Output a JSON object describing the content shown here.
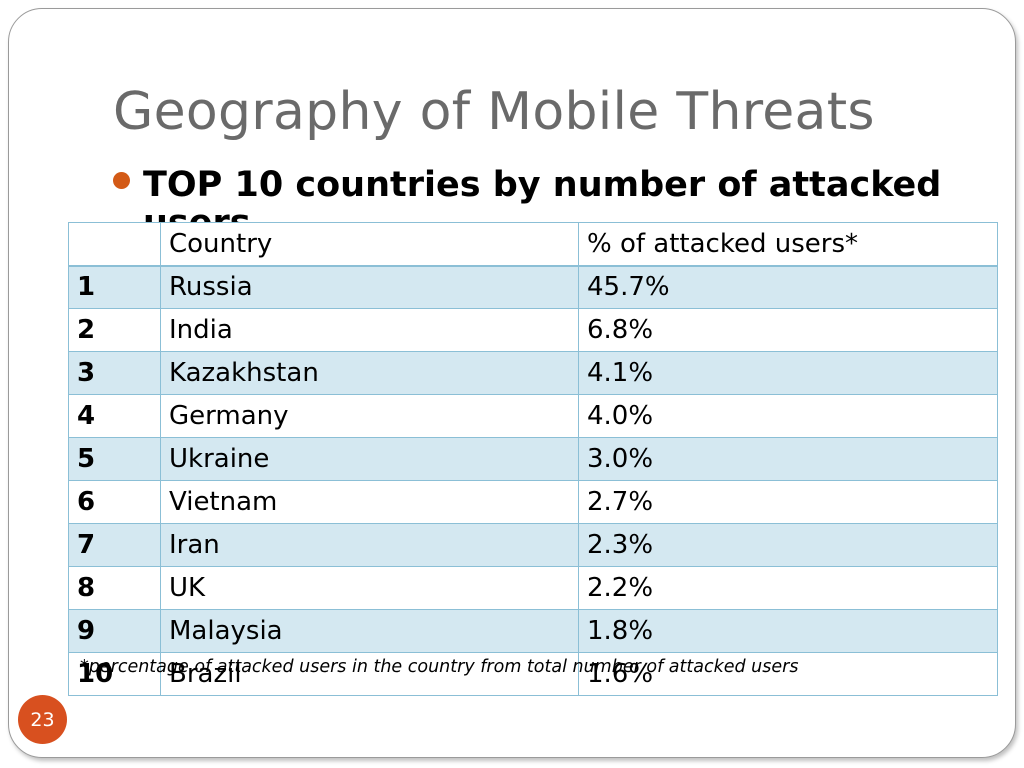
{
  "slide": {
    "title": "Geography of Mobile Threats",
    "bullet": "TOP 10 countries by number of attacked users",
    "footnote": "*percentage of attacked users in the country from total number of attacked users",
    "page_number": "23",
    "accent_color": "#d8501f",
    "table_stripe_color": "#d4e8f1",
    "table_border_color": "#8bbfd6"
  },
  "table": {
    "headers": [
      "",
      "Country",
      "%  of attacked users*"
    ],
    "rows": [
      {
        "rank": "1",
        "country": "Russia",
        "percent": "45.7%"
      },
      {
        "rank": "2",
        "country": "India",
        "percent": "6.8%"
      },
      {
        "rank": "3",
        "country": "Kazakhstan",
        "percent": "4.1%"
      },
      {
        "rank": "4",
        "country": "Germany",
        "percent": "4.0%"
      },
      {
        "rank": "5",
        "country": "Ukraine",
        "percent": "3.0%"
      },
      {
        "rank": "6",
        "country": "Vietnam",
        "percent": "2.7%"
      },
      {
        "rank": "7",
        "country": "Iran",
        "percent": "2.3%"
      },
      {
        "rank": "8",
        "country": "UK",
        "percent": "2.2%"
      },
      {
        "rank": "9",
        "country": "Malaysia",
        "percent": "1.8%"
      },
      {
        "rank": "10",
        "country": "Brazil",
        "percent": "1.6%"
      }
    ]
  }
}
